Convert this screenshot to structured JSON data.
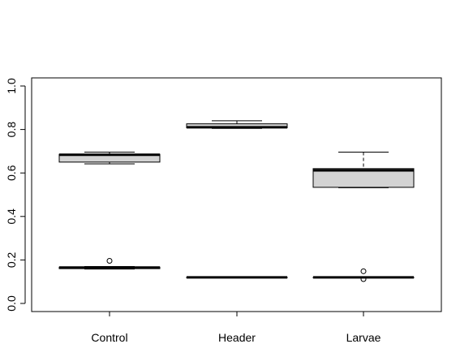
{
  "chart_data": {
    "type": "boxplot",
    "title": "",
    "xlabel": "",
    "ylabel": "",
    "ylim": [
      0,
      1
    ],
    "y_ticks": [
      "0.0",
      "0.2",
      "0.4",
      "0.6",
      "0.8",
      "1.0"
    ],
    "categories": [
      "Control",
      "Header",
      "Larvae"
    ],
    "fill_color": "#d3d3d3",
    "boxes": [
      {
        "category": "Control",
        "group": "upper",
        "whisker_low": 0.642,
        "q1": 0.65,
        "median": 0.684,
        "q3": 0.686,
        "whisker_high": 0.696,
        "outliers": []
      },
      {
        "category": "Control",
        "group": "lower",
        "whisker_low": 0.158,
        "q1": 0.16,
        "median": 0.165,
        "q3": 0.167,
        "whisker_high": 0.17,
        "outliers": [
          0.196
        ]
      },
      {
        "category": "Header",
        "group": "upper",
        "whisker_low": 0.805,
        "q1": 0.808,
        "median": 0.81,
        "q3": 0.826,
        "whisker_high": 0.84,
        "outliers": []
      },
      {
        "category": "Header",
        "group": "lower",
        "whisker_low": 0.12,
        "q1": 0.12,
        "median": 0.12,
        "q3": 0.12,
        "whisker_high": 0.12,
        "outliers": []
      },
      {
        "category": "Larvae",
        "group": "upper",
        "whisker_low": 0.532,
        "q1": 0.534,
        "median": 0.612,
        "q3": 0.62,
        "whisker_high": 0.696,
        "outliers": []
      },
      {
        "category": "Larvae",
        "group": "lower",
        "whisker_low": 0.12,
        "q1": 0.12,
        "median": 0.12,
        "q3": 0.12,
        "whisker_high": 0.12,
        "outliers": [
          0.148,
          0.112
        ]
      }
    ],
    "grid": false,
    "legend": "none"
  }
}
